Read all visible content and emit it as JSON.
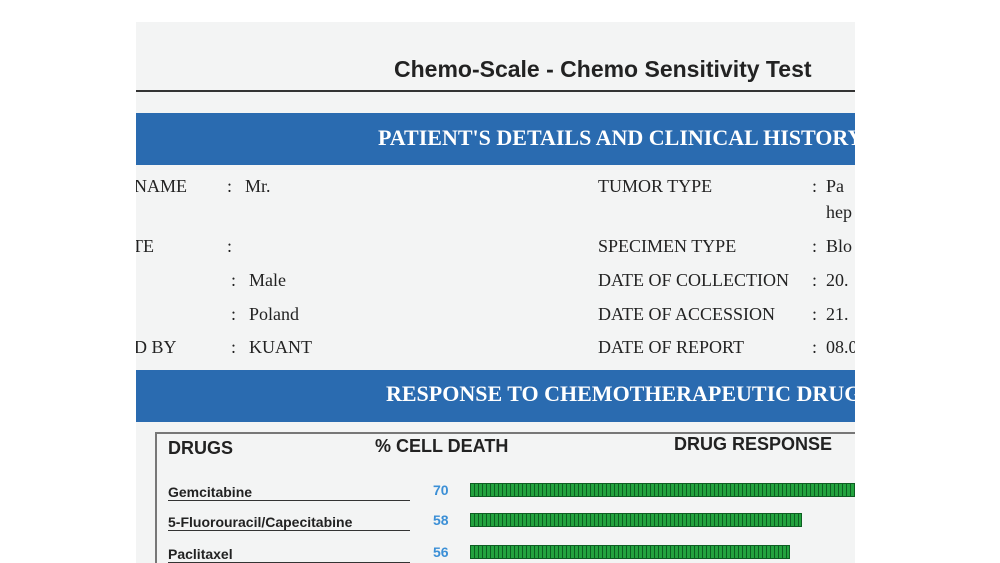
{
  "header": {
    "title": "Chemo-Scale - Chemo Sensitivity Test"
  },
  "separator": ":",
  "sections": [
    {
      "title": "PATIENT'S DETAILS AND CLINICAL HISTORY"
    },
    {
      "title": "RESPONSE TO CHEMOTHERAPEUTIC DRUGS"
    }
  ],
  "details": {
    "left": [
      {
        "label": "NAME",
        "value": "Mr."
      },
      {
        "label": "TE"
      },
      {
        "value": "Male"
      },
      {
        "value": "Poland"
      },
      {
        "label": "D BY",
        "value": "KUANT"
      }
    ],
    "right": [
      {
        "label": "TUMOR TYPE",
        "value": [
          "Pa",
          "hep"
        ]
      },
      {
        "label": "SPECIMEN TYPE",
        "value": [
          "Blo"
        ]
      },
      {
        "label": "DATE OF COLLECTION",
        "value": [
          "20."
        ]
      },
      {
        "label": "DATE OF ACCESSION",
        "value": [
          "21."
        ]
      },
      {
        "label": "DATE OF REPORT",
        "value": [
          "08.0"
        ]
      }
    ]
  },
  "table": {
    "headers": [
      "DRUGS",
      "% CELL DEATH",
      "DRUG RESPONSE"
    ],
    "rows": [
      {
        "drug": "Gemcitabine",
        "cell_death": 70
      },
      {
        "drug": "5-Fluorouracil/Capecitabine",
        "cell_death": 58
      },
      {
        "drug": "Paclitaxel",
        "cell_death": 56
      }
    ]
  }
}
